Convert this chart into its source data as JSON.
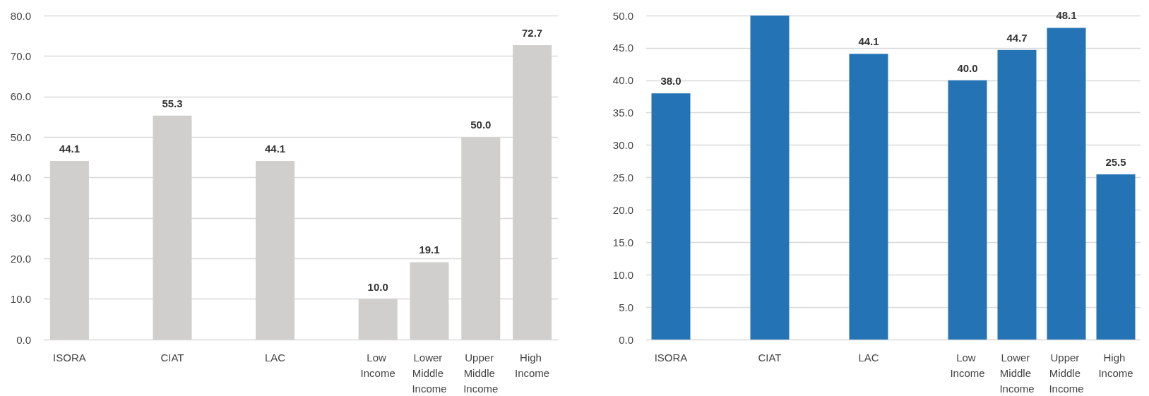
{
  "chart_data": [
    {
      "type": "bar",
      "categories": [
        "ISORA",
        null,
        "CIAT",
        null,
        "LAC",
        null,
        "Low Income",
        "Lower Middle Income",
        "Upper Middle Income",
        "High Income"
      ],
      "series": [
        {
          "color": "#d0cfcd",
          "values": [
            44.1,
            null,
            55.3,
            null,
            44.1,
            null,
            10.0,
            19.1,
            50.0,
            72.7
          ],
          "value_labels": [
            "44.1",
            null,
            "55.3",
            null,
            "44.1",
            null,
            "10.0",
            "19.1",
            "50.0",
            "72.7"
          ]
        }
      ],
      "ylim": [
        0,
        80
      ],
      "yticks": [
        {
          "value": 0,
          "label": "0.0"
        },
        {
          "value": 10,
          "label": "10.0"
        },
        {
          "value": 20,
          "label": "20.0"
        },
        {
          "value": 30,
          "label": "30.0"
        },
        {
          "value": 40,
          "label": "40.0"
        },
        {
          "value": 50,
          "label": "50.0"
        },
        {
          "value": 60,
          "label": "60.0"
        },
        {
          "value": 70,
          "label": "70.0"
        },
        {
          "value": 80,
          "label": "80.0"
        }
      ],
      "grid": "y"
    },
    {
      "type": "bar",
      "categories": [
        "ISORA",
        null,
        "CIAT",
        null,
        "LAC",
        null,
        "Low Income",
        "Lower Middle Income",
        "Upper Middle Income",
        "High Income"
      ],
      "series": [
        {
          "color": "#2474b5",
          "values": [
            38.0,
            null,
            50,
            null,
            44.1,
            null,
            40.0,
            44.7,
            48.1,
            25.5
          ],
          "value_labels": [
            "38.0",
            null,
            null,
            null,
            "44.1",
            null,
            "40.0",
            "44.7",
            "48.1",
            "25.5"
          ]
        }
      ],
      "ylim": [
        0,
        50
      ],
      "yticks": [
        {
          "value": 0,
          "label": "0.0"
        },
        {
          "value": 5,
          "label": "5.0"
        },
        {
          "value": 10,
          "label": "10.0"
        },
        {
          "value": 15,
          "label": "15.0"
        },
        {
          "value": 20,
          "label": "20.0"
        },
        {
          "value": 25,
          "label": "25.0"
        },
        {
          "value": 30,
          "label": "30.0"
        },
        {
          "value": 35,
          "label": "35.0"
        },
        {
          "value": 40,
          "label": "40.0"
        },
        {
          "value": 45,
          "label": "45.0"
        },
        {
          "value": 50,
          "label": "50.0"
        }
      ],
      "grid": "y"
    }
  ]
}
